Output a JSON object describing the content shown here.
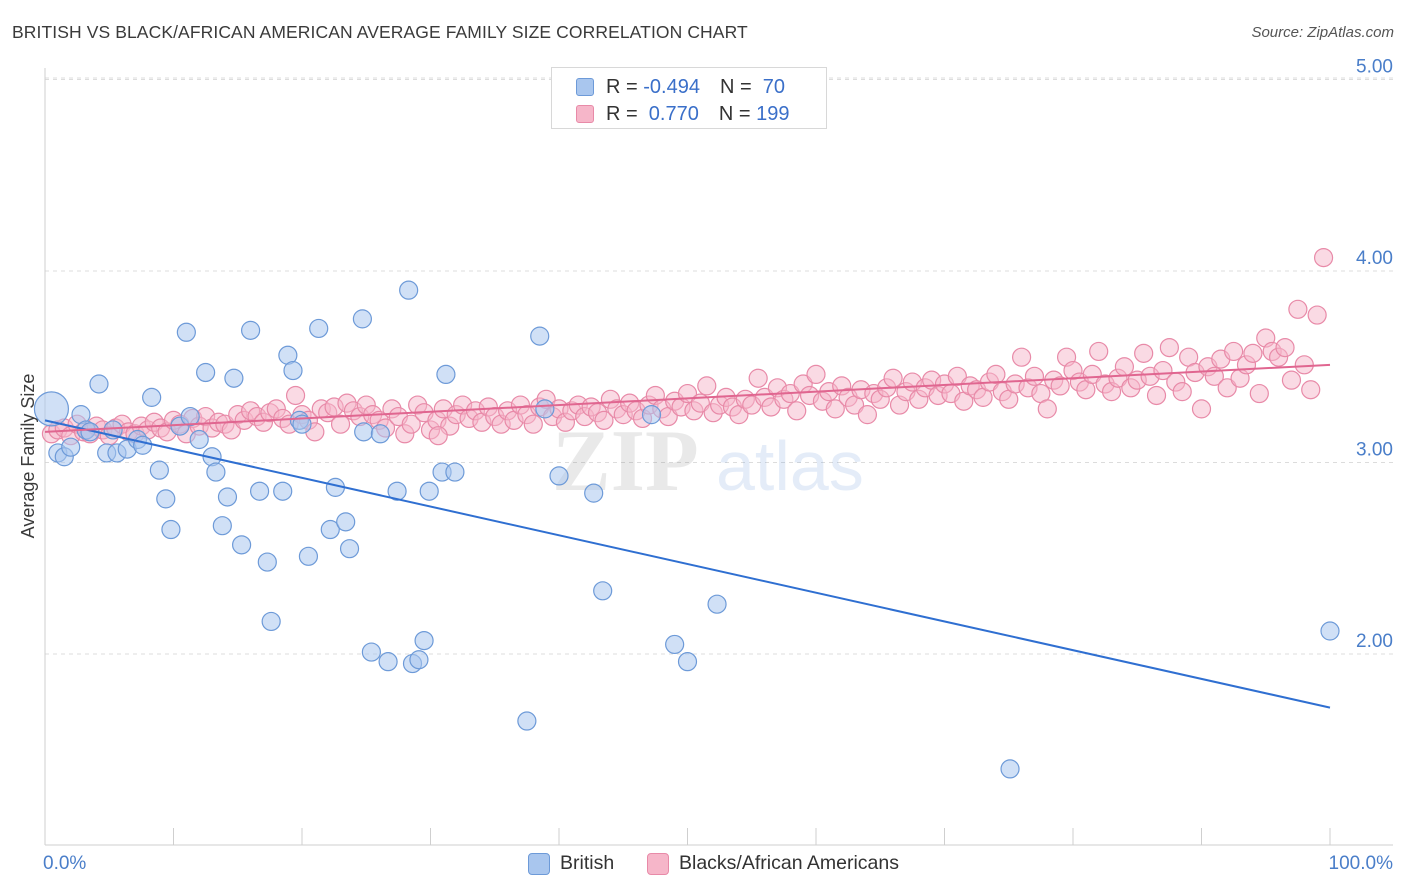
{
  "title": "BRITISH VS BLACK/AFRICAN AMERICAN AVERAGE FAMILY SIZE CORRELATION CHART",
  "source": "Source: ZipAtlas.com",
  "watermark": {
    "zip": "ZIP",
    "atlas": "atlas"
  },
  "legend": {
    "british": {
      "r_label": "R = ",
      "r_value": "-0.494",
      "n_label": "N = ",
      "n_value": " 70"
    },
    "black": {
      "r_label": "R = ",
      "r_value": " 0.770",
      "n_label": "N = ",
      "n_value": "199"
    }
  },
  "bottom_legend": {
    "british": "British",
    "black": "Blacks/African Americans"
  },
  "colors": {
    "british_fill": "#a9c6ee",
    "british_stroke": "#6d9ad8",
    "british_line": "#2f6fd1",
    "black_fill": "#f6b6c9",
    "black_stroke": "#e88aa8",
    "black_line": "#e06690",
    "axis_text": "#4a7ec9",
    "grid": "#dcdcdc"
  },
  "chart_data": {
    "type": "scatter",
    "title": "BRITISH VS BLACK/AFRICAN AMERICAN AVERAGE FAMILY SIZE CORRELATION CHART",
    "xlabel": "",
    "ylabel": "Average Family Size",
    "xlim": [
      0,
      100
    ],
    "ylim": [
      1.0,
      5.1
    ],
    "x_tick_labels": [
      "0.0%",
      "100.0%"
    ],
    "y_ticks": [
      2.0,
      3.0,
      4.0,
      5.0
    ],
    "y_tick_labels": [
      "2.00",
      "3.00",
      "4.00",
      "5.00"
    ],
    "grid": true,
    "legend_position": "top-center",
    "series": [
      {
        "name": "British",
        "r": -0.494,
        "n": 70,
        "trend": {
          "x": [
            0,
            100
          ],
          "y": [
            3.22,
            1.72
          ]
        },
        "points": [
          [
            0.5,
            3.28
          ],
          [
            1,
            3.05
          ],
          [
            1.5,
            3.03
          ],
          [
            2,
            3.08
          ],
          [
            2.8,
            3.25
          ],
          [
            3.2,
            3.17
          ],
          [
            3.5,
            3.16
          ],
          [
            4.2,
            3.41
          ],
          [
            4.8,
            3.05
          ],
          [
            5.3,
            3.17
          ],
          [
            5.6,
            3.05
          ],
          [
            6.4,
            3.07
          ],
          [
            7.2,
            3.12
          ],
          [
            7.6,
            3.09
          ],
          [
            8.3,
            3.34
          ],
          [
            8.9,
            2.96
          ],
          [
            9.4,
            2.81
          ],
          [
            9.8,
            2.65
          ],
          [
            10.5,
            3.19
          ],
          [
            11,
            3.68
          ],
          [
            11.3,
            3.24
          ],
          [
            12,
            3.12
          ],
          [
            12.5,
            3.47
          ],
          [
            13,
            3.03
          ],
          [
            13.3,
            2.95
          ],
          [
            13.8,
            2.67
          ],
          [
            14.2,
            2.82
          ],
          [
            14.7,
            3.44
          ],
          [
            15.3,
            2.57
          ],
          [
            16,
            3.69
          ],
          [
            16.7,
            2.85
          ],
          [
            17.3,
            2.48
          ],
          [
            17.6,
            2.17
          ],
          [
            18.5,
            2.85
          ],
          [
            18.9,
            3.56
          ],
          [
            19.3,
            3.48
          ],
          [
            19.8,
            3.22
          ],
          [
            20,
            3.2
          ],
          [
            20.5,
            2.51
          ],
          [
            21.3,
            3.7
          ],
          [
            22.2,
            2.65
          ],
          [
            22.6,
            2.87
          ],
          [
            23.4,
            2.69
          ],
          [
            23.7,
            2.55
          ],
          [
            24.7,
            3.75
          ],
          [
            24.8,
            3.16
          ],
          [
            25.4,
            2.01
          ],
          [
            26.1,
            3.15
          ],
          [
            26.7,
            1.96
          ],
          [
            27.4,
            2.85
          ],
          [
            28.3,
            3.9
          ],
          [
            28.6,
            1.95
          ],
          [
            29.1,
            1.97
          ],
          [
            29.5,
            2.07
          ],
          [
            29.9,
            2.85
          ],
          [
            30.9,
            2.95
          ],
          [
            31.2,
            3.46
          ],
          [
            31.9,
            2.95
          ],
          [
            37.5,
            1.65
          ],
          [
            38.5,
            3.66
          ],
          [
            38.9,
            3.28
          ],
          [
            40,
            2.93
          ],
          [
            42.7,
            2.84
          ],
          [
            43.4,
            2.33
          ],
          [
            47.2,
            3.25
          ],
          [
            49,
            2.05
          ],
          [
            50,
            1.96
          ],
          [
            52.3,
            2.26
          ],
          [
            75.1,
            1.4
          ],
          [
            100,
            2.12
          ]
        ]
      },
      {
        "name": "Blacks/African Americans",
        "r": 0.77,
        "n": 199,
        "trend": {
          "x": [
            0,
            100
          ],
          "y": [
            3.16,
            3.51
          ]
        },
        "points": [
          [
            0.5,
            3.15
          ],
          [
            1,
            3.17
          ],
          [
            1.5,
            3.18
          ],
          [
            2,
            3.14
          ],
          [
            2.5,
            3.2
          ],
          [
            3,
            3.16
          ],
          [
            3.5,
            3.15
          ],
          [
            4,
            3.19
          ],
          [
            4.5,
            3.17
          ],
          [
            5,
            3.14
          ],
          [
            5.5,
            3.18
          ],
          [
            6,
            3.2
          ],
          [
            6.5,
            3.16
          ],
          [
            7,
            3.15
          ],
          [
            7.5,
            3.19
          ],
          [
            8,
            3.17
          ],
          [
            8.5,
            3.21
          ],
          [
            9,
            3.18
          ],
          [
            9.5,
            3.16
          ],
          [
            10,
            3.22
          ],
          [
            10.5,
            3.2
          ],
          [
            11,
            3.15
          ],
          [
            11.5,
            3.23
          ],
          [
            12,
            3.19
          ],
          [
            12.5,
            3.24
          ],
          [
            13,
            3.18
          ],
          [
            13.5,
            3.21
          ],
          [
            14,
            3.2
          ],
          [
            14.5,
            3.17
          ],
          [
            15,
            3.25
          ],
          [
            15.5,
            3.22
          ],
          [
            16,
            3.27
          ],
          [
            16.5,
            3.24
          ],
          [
            17,
            3.21
          ],
          [
            17.5,
            3.26
          ],
          [
            18,
            3.28
          ],
          [
            18.5,
            3.23
          ],
          [
            19,
            3.2
          ],
          [
            19.5,
            3.35
          ],
          [
            20,
            3.25
          ],
          [
            20.5,
            3.22
          ],
          [
            21,
            3.16
          ],
          [
            21.5,
            3.28
          ],
          [
            22,
            3.26
          ],
          [
            22.5,
            3.29
          ],
          [
            23,
            3.2
          ],
          [
            23.5,
            3.31
          ],
          [
            24,
            3.27
          ],
          [
            24.5,
            3.24
          ],
          [
            25,
            3.3
          ],
          [
            25.5,
            3.25
          ],
          [
            26,
            3.22
          ],
          [
            26.5,
            3.18
          ],
          [
            27,
            3.28
          ],
          [
            27.5,
            3.24
          ],
          [
            28,
            3.15
          ],
          [
            28.5,
            3.2
          ],
          [
            29,
            3.3
          ],
          [
            29.5,
            3.26
          ],
          [
            30,
            3.17
          ],
          [
            30.5,
            3.22
          ],
          [
            31,
            3.28
          ],
          [
            31.5,
            3.19
          ],
          [
            32,
            3.25
          ],
          [
            32.5,
            3.3
          ],
          [
            33,
            3.23
          ],
          [
            33.5,
            3.27
          ],
          [
            34,
            3.21
          ],
          [
            34.5,
            3.29
          ],
          [
            35,
            3.24
          ],
          [
            35.5,
            3.2
          ],
          [
            36,
            3.27
          ],
          [
            36.5,
            3.22
          ],
          [
            37,
            3.3
          ],
          [
            37.5,
            3.25
          ],
          [
            38,
            3.2
          ],
          [
            38.5,
            3.29
          ],
          [
            39,
            3.33
          ],
          [
            39.5,
            3.24
          ],
          [
            40,
            3.28
          ],
          [
            40.5,
            3.21
          ],
          [
            41,
            3.27
          ],
          [
            41.5,
            3.3
          ],
          [
            42,
            3.24
          ],
          [
            42.5,
            3.29
          ],
          [
            43,
            3.26
          ],
          [
            43.5,
            3.22
          ],
          [
            44,
            3.33
          ],
          [
            44.5,
            3.28
          ],
          [
            45,
            3.25
          ],
          [
            45.5,
            3.31
          ],
          [
            46,
            3.27
          ],
          [
            46.5,
            3.23
          ],
          [
            47,
            3.3
          ],
          [
            47.5,
            3.35
          ],
          [
            48,
            3.28
          ],
          [
            48.5,
            3.24
          ],
          [
            49,
            3.32
          ],
          [
            49.5,
            3.29
          ],
          [
            50,
            3.36
          ],
          [
            50.5,
            3.27
          ],
          [
            51,
            3.31
          ],
          [
            51.5,
            3.4
          ],
          [
            52,
            3.26
          ],
          [
            52.5,
            3.3
          ],
          [
            53,
            3.34
          ],
          [
            53.5,
            3.29
          ],
          [
            54,
            3.25
          ],
          [
            54.5,
            3.33
          ],
          [
            55,
            3.3
          ],
          [
            55.5,
            3.44
          ],
          [
            56,
            3.34
          ],
          [
            56.5,
            3.29
          ],
          [
            57,
            3.39
          ],
          [
            57.5,
            3.33
          ],
          [
            58,
            3.36
          ],
          [
            58.5,
            3.27
          ],
          [
            59,
            3.41
          ],
          [
            59.5,
            3.35
          ],
          [
            60,
            3.46
          ],
          [
            60.5,
            3.32
          ],
          [
            61,
            3.37
          ],
          [
            61.5,
            3.28
          ],
          [
            62,
            3.4
          ],
          [
            62.5,
            3.34
          ],
          [
            63,
            3.3
          ],
          [
            63.5,
            3.38
          ],
          [
            64,
            3.25
          ],
          [
            64.5,
            3.36
          ],
          [
            65,
            3.33
          ],
          [
            65.5,
            3.39
          ],
          [
            66,
            3.44
          ],
          [
            66.5,
            3.3
          ],
          [
            67,
            3.37
          ],
          [
            67.5,
            3.42
          ],
          [
            68,
            3.33
          ],
          [
            68.5,
            3.39
          ],
          [
            69,
            3.43
          ],
          [
            69.5,
            3.35
          ],
          [
            70,
            3.41
          ],
          [
            70.5,
            3.36
          ],
          [
            71,
            3.45
          ],
          [
            71.5,
            3.32
          ],
          [
            72,
            3.4
          ],
          [
            72.5,
            3.38
          ],
          [
            73,
            3.34
          ],
          [
            73.5,
            3.42
          ],
          [
            74,
            3.46
          ],
          [
            74.5,
            3.37
          ],
          [
            75,
            3.33
          ],
          [
            75.5,
            3.41
          ],
          [
            76,
            3.55
          ],
          [
            76.5,
            3.39
          ],
          [
            77,
            3.45
          ],
          [
            77.5,
            3.36
          ],
          [
            78,
            3.28
          ],
          [
            78.5,
            3.43
          ],
          [
            79,
            3.4
          ],
          [
            79.5,
            3.55
          ],
          [
            80,
            3.48
          ],
          [
            80.5,
            3.42
          ],
          [
            81,
            3.38
          ],
          [
            81.5,
            3.46
          ],
          [
            82,
            3.58
          ],
          [
            82.5,
            3.41
          ],
          [
            83,
            3.37
          ],
          [
            83.5,
            3.44
          ],
          [
            84,
            3.5
          ],
          [
            84.5,
            3.39
          ],
          [
            85,
            3.43
          ],
          [
            85.5,
            3.57
          ],
          [
            86,
            3.45
          ],
          [
            86.5,
            3.35
          ],
          [
            87,
            3.48
          ],
          [
            87.5,
            3.6
          ],
          [
            88,
            3.42
          ],
          [
            88.5,
            3.37
          ],
          [
            89,
            3.55
          ],
          [
            89.5,
            3.47
          ],
          [
            90,
            3.28
          ],
          [
            90.5,
            3.5
          ],
          [
            91,
            3.45
          ],
          [
            91.5,
            3.54
          ],
          [
            92,
            3.39
          ],
          [
            92.5,
            3.58
          ],
          [
            93,
            3.44
          ],
          [
            93.5,
            3.51
          ],
          [
            94,
            3.57
          ],
          [
            94.5,
            3.36
          ],
          [
            95,
            3.65
          ],
          [
            95.5,
            3.58
          ],
          [
            96,
            3.55
          ],
          [
            96.5,
            3.6
          ],
          [
            97,
            3.43
          ],
          [
            97.5,
            3.8
          ],
          [
            98,
            3.51
          ],
          [
            98.5,
            3.38
          ],
          [
            99,
            3.77
          ],
          [
            99.5,
            4.07
          ],
          [
            30.6,
            3.14
          ]
        ]
      }
    ]
  }
}
